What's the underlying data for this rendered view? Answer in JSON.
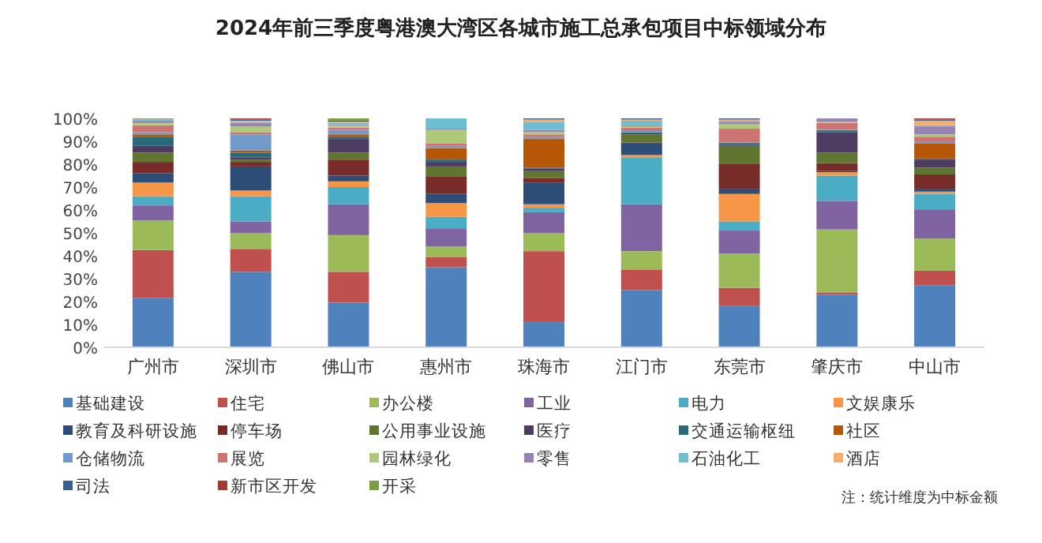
{
  "chart_data": {
    "type": "bar",
    "stacked": true,
    "title": "2024年前三季度粤港澳大湾区各城市施工总承包项目中标领域分布",
    "categories": [
      "广州市",
      "深圳市",
      "佛山市",
      "惠州市",
      "珠海市",
      "江门市",
      "东莞市",
      "肇庆市",
      "中山市"
    ],
    "ylim": [
      0,
      100
    ],
    "yticks": [
      {
        "value": 0,
        "label": "0%"
      },
      {
        "value": 10,
        "label": "10%"
      },
      {
        "value": 20,
        "label": "20%"
      },
      {
        "value": 30,
        "label": "30%"
      },
      {
        "value": 40,
        "label": "40%"
      },
      {
        "value": 50,
        "label": "50%"
      },
      {
        "value": 60,
        "label": "60%"
      },
      {
        "value": 70,
        "label": "70%"
      },
      {
        "value": 80,
        "label": "80%"
      },
      {
        "value": 90,
        "label": "90%"
      },
      {
        "value": 100,
        "label": "100%"
      }
    ],
    "grid": false,
    "legend": "bottom",
    "annotations": [
      "注：统计维度为中标金额"
    ],
    "series": [
      {
        "name": "基础建设",
        "color": "#4f81bd",
        "values": [
          21.5,
          33,
          19.5,
          35,
          11,
          25,
          18,
          23,
          27
        ]
      },
      {
        "name": "住宅",
        "color": "#c0504d",
        "values": [
          21,
          10,
          13.5,
          4.5,
          31,
          9,
          8,
          1,
          6.5
        ]
      },
      {
        "name": "办公楼",
        "color": "#9bbb59",
        "values": [
          13,
          7,
          16,
          4.5,
          8,
          8,
          15,
          27.5,
          14
        ]
      },
      {
        "name": "工业",
        "color": "#8064a2",
        "values": [
          6.5,
          5,
          13.5,
          8,
          9,
          20.5,
          10,
          12.5,
          12.5
        ]
      },
      {
        "name": "电力",
        "color": "#4bacc6",
        "values": [
          4,
          11,
          7.5,
          5,
          2,
          20.5,
          4,
          11,
          7
        ]
      },
      {
        "name": "文娱康乐",
        "color": "#f79646",
        "values": [
          6,
          2.5,
          2.5,
          6,
          1.5,
          1,
          12,
          1.5,
          1
        ]
      },
      {
        "name": "教育及科研设施",
        "color": "#2c4d75",
        "values": [
          4,
          10.5,
          2.5,
          4,
          9.5,
          5,
          2,
          0.5,
          1
        ]
      },
      {
        "name": "停车场",
        "color": "#772c2a",
        "values": [
          5,
          2,
          7,
          7.5,
          2,
          0.5,
          11,
          3.5,
          6.5
        ]
      },
      {
        "name": "公用事业设施",
        "color": "#5f7530",
        "values": [
          4,
          1,
          3,
          4.5,
          3,
          3.5,
          8,
          4.5,
          3
        ]
      },
      {
        "name": "医疗",
        "color": "#4d3b62",
        "values": [
          3,
          1,
          6,
          2,
          1,
          0.5,
          0.5,
          9,
          3.5
        ]
      },
      {
        "name": "交通运输枢纽",
        "color": "#276a7c",
        "values": [
          4,
          2,
          1,
          1,
          0.5,
          0.5,
          0.5,
          0.5,
          0.5
        ]
      },
      {
        "name": "社区",
        "color": "#b65708",
        "values": [
          1,
          1,
          1,
          5,
          12.5,
          0,
          0.5,
          0.5,
          6.5
        ]
      },
      {
        "name": "仓储物流",
        "color": "#729aca",
        "values": [
          1,
          7,
          2,
          1,
          1,
          0.5,
          0.5,
          0.5,
          1
        ]
      },
      {
        "name": "展览",
        "color": "#cd7371",
        "values": [
          3,
          1,
          1,
          1,
          1,
          1.5,
          5.5,
          2.5,
          2
        ]
      },
      {
        "name": "园林绿化",
        "color": "#afc97a",
        "values": [
          1,
          2.5,
          1,
          6,
          1,
          0.5,
          2,
          0.5,
          1
        ]
      },
      {
        "name": "零售",
        "color": "#9983b5",
        "values": [
          1,
          1.5,
          0.5,
          0.5,
          1,
          0.5,
          1,
          1.5,
          3.5
        ]
      },
      {
        "name": "石油化工",
        "color": "#6fbdd1",
        "values": [
          0.3,
          0.5,
          0.5,
          4.5,
          3.5,
          2,
          0.5,
          0,
          0.5
        ]
      },
      {
        "name": "酒店",
        "color": "#f9ab6b",
        "values": [
          0.3,
          0.5,
          0.5,
          0,
          1,
          0.5,
          0.5,
          0,
          2
        ]
      },
      {
        "name": "司法",
        "color": "#3a5f8f",
        "values": [
          0.2,
          0.5,
          0.5,
          0,
          0.5,
          0.5,
          0.5,
          0,
          0.5
        ]
      },
      {
        "name": "新市区开发",
        "color": "#a33a36",
        "values": [
          0.1,
          0.5,
          null,
          0,
          0,
          0,
          0,
          0,
          0.5
        ]
      },
      {
        "name": "开采",
        "color": "#7e9c40",
        "values": [
          0.1,
          0,
          1,
          0,
          0,
          0,
          0,
          0,
          0
        ]
      }
    ]
  }
}
